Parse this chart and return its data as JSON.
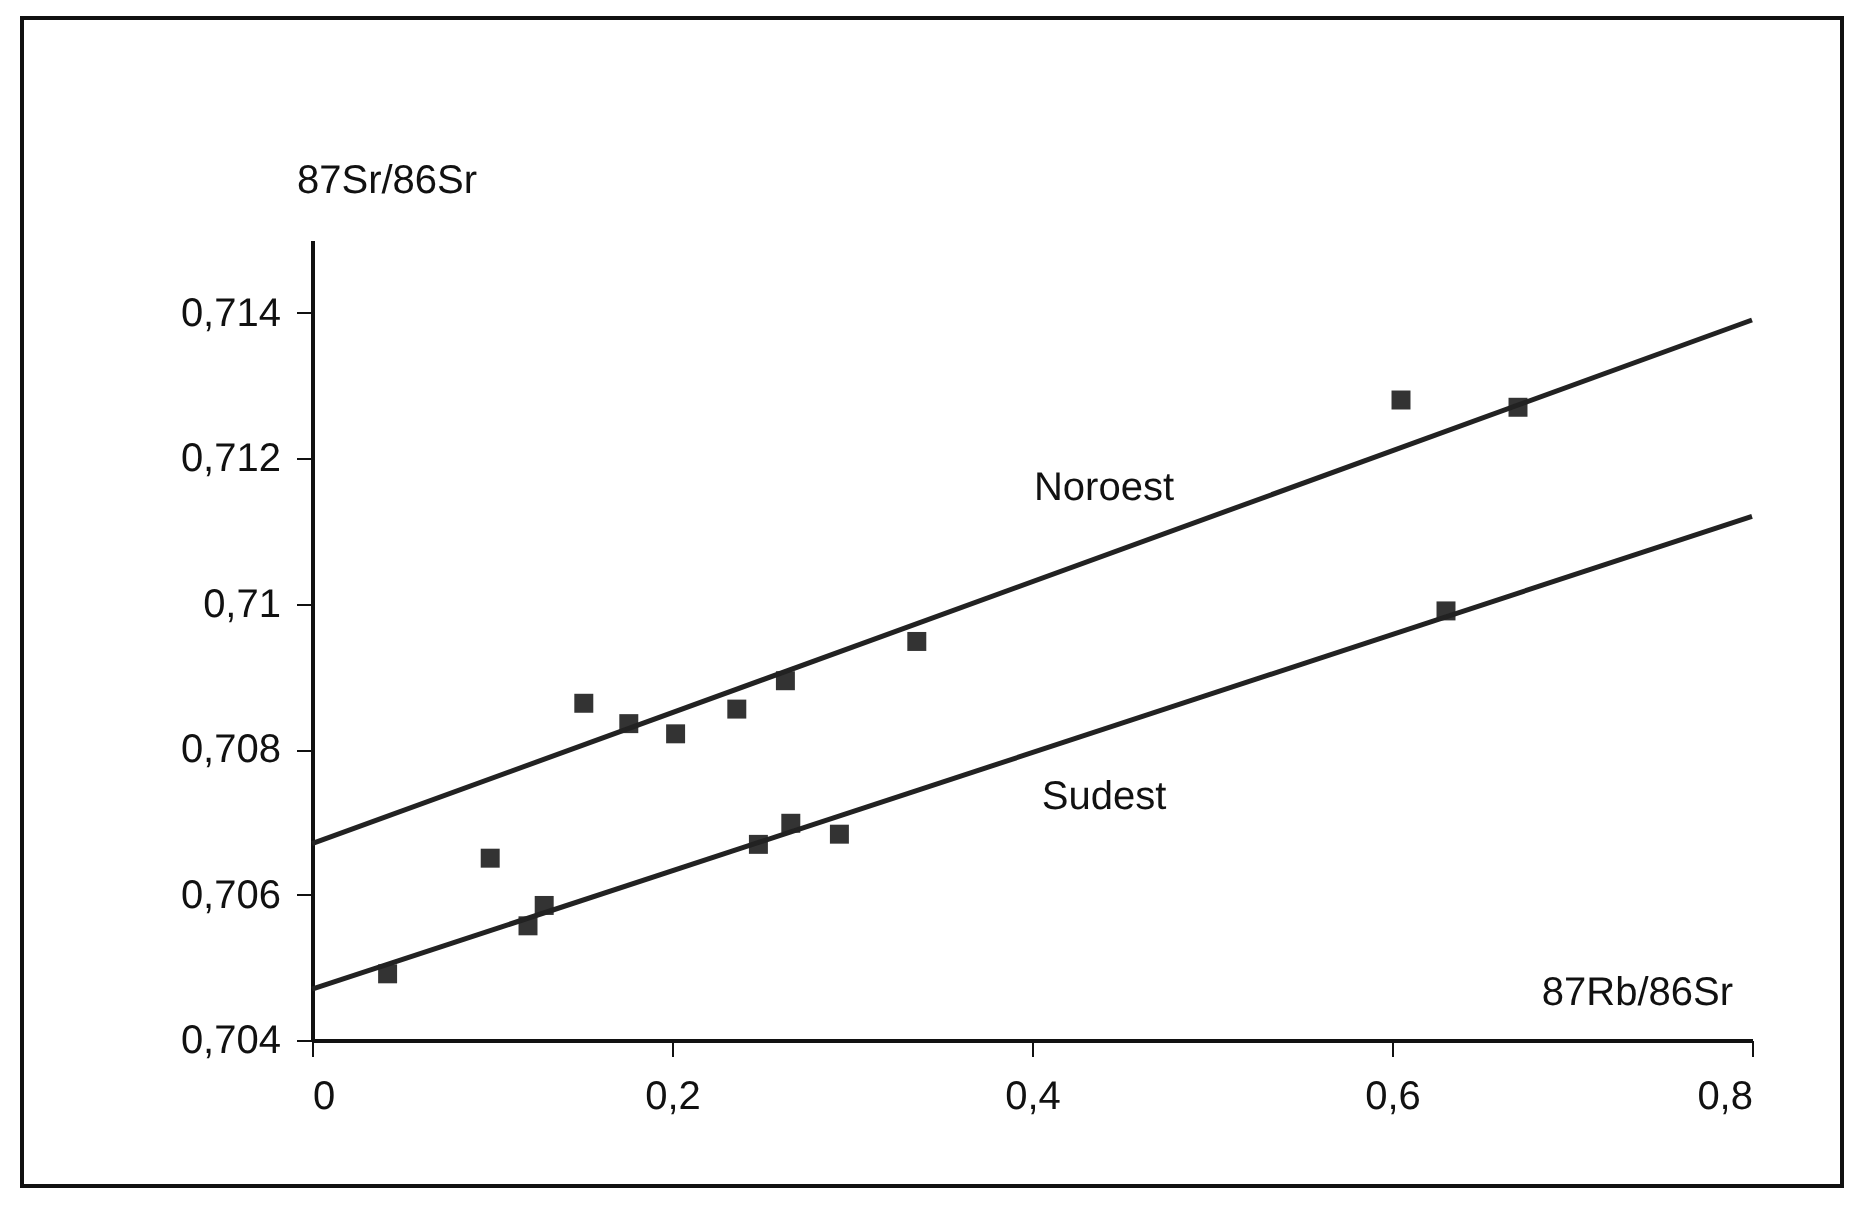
{
  "chart_data": {
    "type": "scatter",
    "ylabel": "87Sr/86Sr",
    "xlabel": "87Rb/86Sr",
    "xlim": [
      0,
      0.8
    ],
    "xticks": [
      0,
      {
        "value": 0.2,
        "label": "0,2"
      },
      {
        "value": 0.4,
        "label": "0,4"
      },
      {
        "value": 0.6,
        "label": "0,6"
      },
      {
        "value": 0.8,
        "label": "0,8"
      }
    ],
    "ylim": [
      0.704,
      0.715
    ],
    "yticks": [
      {
        "value": 0.704,
        "label": "0,704"
      },
      {
        "value": 0.706,
        "label": "0,706"
      },
      {
        "value": 0.708,
        "label": "0,708"
      },
      {
        "value": 0.71,
        "label": "0,71"
      },
      {
        "value": 0.712,
        "label": "0,712"
      },
      {
        "value": 0.714,
        "label": "0,714"
      }
    ],
    "grid": false,
    "marker": "square",
    "series": [
      {
        "color": "#333333",
        "x": [
          0.151,
          0.176,
          0.202,
          0.236,
          0.263,
          0.336,
          0.605,
          0.67
        ],
        "values": [
          0.70863,
          0.70835,
          0.70821,
          0.70855,
          0.70894,
          0.70948,
          0.7128,
          0.7127
        ]
      },
      {
        "color": "#333333",
        "x": [
          0.042,
          0.099,
          0.12,
          0.129,
          0.248,
          0.266,
          0.293,
          0.63
        ],
        "values": [
          0.70491,
          0.7065,
          0.70557,
          0.70585,
          0.70669,
          0.70698,
          0.70683,
          0.7099
        ]
      },
      {
        "type": "line",
        "name": "Noroest",
        "color": "#222222",
        "line_style": "solid",
        "marker": "none",
        "x": [
          0,
          0.8
        ],
        "values": [
          0.7067,
          0.7139
        ]
      },
      {
        "type": "line",
        "name": "Sudest",
        "color": "#222222",
        "line_style": "solid",
        "marker": "none",
        "x": [
          0,
          0.8
        ],
        "values": [
          0.7047,
          0.7112
        ]
      }
    ]
  }
}
